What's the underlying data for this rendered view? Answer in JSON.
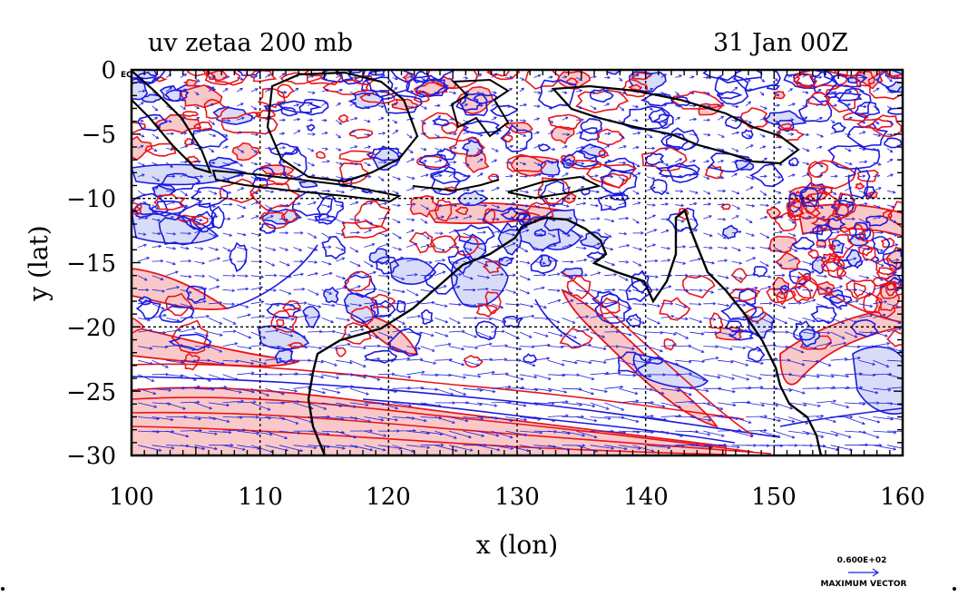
{
  "title_left": "uv zetaa 200 mb",
  "title_right": "31 Jan 00Z",
  "corner_label": "EQ",
  "xlabel": "x (lon)",
  "ylabel": "y (lat)",
  "x_ticks": [
    "100",
    "110",
    "120",
    "130",
    "140",
    "150",
    "160"
  ],
  "y_ticks": [
    "0",
    "−5",
    "−10",
    "−15",
    "−20",
    "−25",
    "−30"
  ],
  "vector_legend": {
    "magnitude": "0.600E+02",
    "label": "MAXIMUM VECTOR"
  },
  "map": {
    "lon_range": [
      100,
      160
    ],
    "lat_range": [
      -30,
      0
    ],
    "grid_lon": [
      110,
      120,
      130,
      140,
      150
    ],
    "grid_lat": [
      -10,
      -20
    ],
    "colors": {
      "positive_contour": "#e8151b",
      "positive_fill": "#f9c9c9",
      "negative_contour": "#1a1ae0",
      "negative_fill": "#d8dcf8",
      "vector": "#2222dd",
      "coast": "#000000"
    }
  }
}
